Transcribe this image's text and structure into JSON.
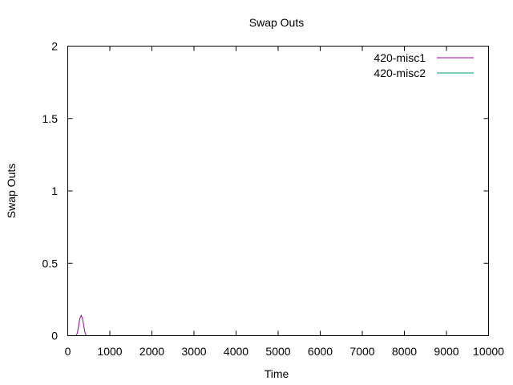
{
  "chart_data": {
    "type": "line",
    "title": "Swap Outs",
    "xlabel": "Time",
    "ylabel": "Swap Outs",
    "xlim": [
      0,
      10000
    ],
    "ylim": [
      0,
      2
    ],
    "xticks": [
      0,
      1000,
      2000,
      3000,
      4000,
      5000,
      6000,
      7000,
      8000,
      9000,
      10000
    ],
    "xtick_labels": [
      "0",
      "1000",
      "2000",
      "3000",
      "4000",
      "5000",
      "6000",
      "7000",
      "8000",
      "9000",
      "10000"
    ],
    "yticks": [
      0,
      0.5,
      1,
      1.5,
      2
    ],
    "ytick_labels": [
      "0",
      "0.5",
      "1",
      "1.5",
      "2"
    ],
    "grid": false,
    "legend_position": "top-right",
    "series": [
      {
        "name": "420-misc1",
        "color": "#990099",
        "x": [
          150,
          200,
          230,
          260,
          290,
          320,
          350,
          380,
          410,
          440,
          470,
          9600
        ],
        "y": [
          0,
          0,
          0.02,
          0.07,
          0.12,
          0.14,
          0.12,
          0.07,
          0.02,
          0,
          0,
          0
        ]
      },
      {
        "name": "420-misc2",
        "color": "#009977",
        "x": [
          150,
          9600
        ],
        "y": [
          0,
          0
        ]
      }
    ]
  }
}
